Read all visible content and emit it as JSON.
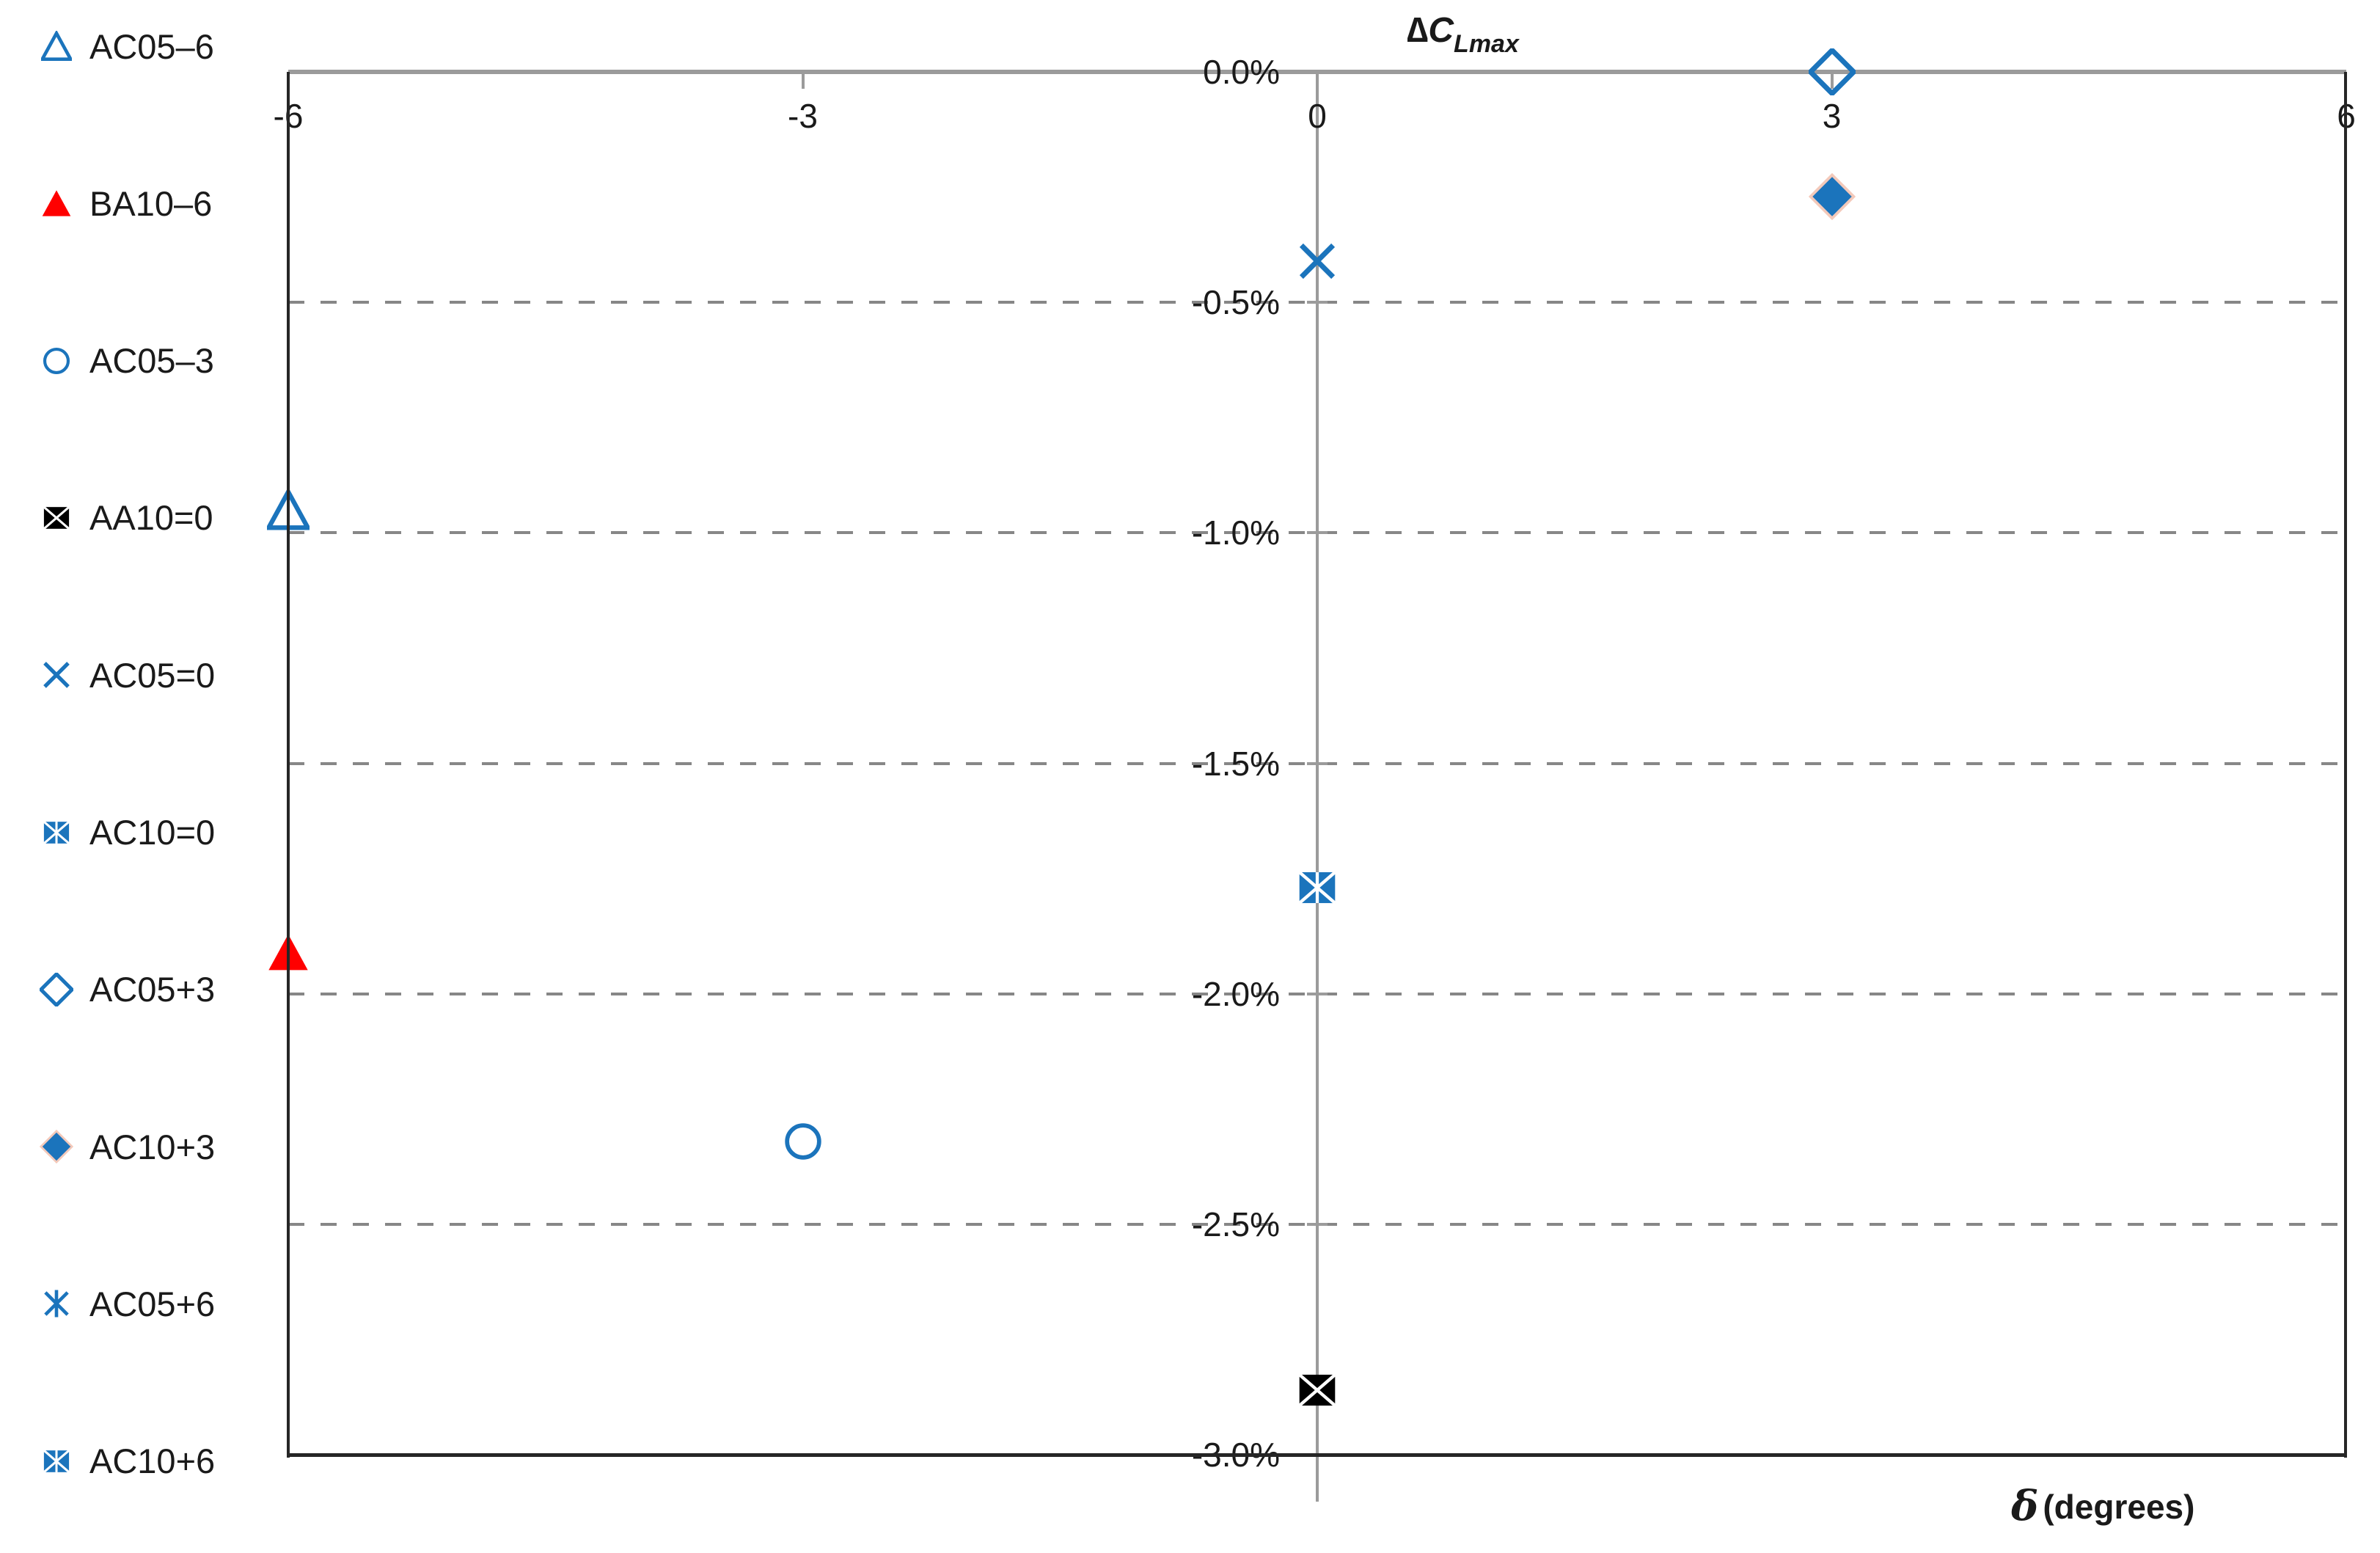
{
  "title_parts": {
    "delta": "∆",
    "symbol": "C",
    "subscript": "Lmax"
  },
  "xlabel_parts": {
    "symbol": "δ",
    "text": "(degrees)"
  },
  "legend": {
    "position": "left"
  },
  "colors": {
    "blue": "#1b74bc",
    "red": "#ff0000",
    "black": "#000000",
    "diamond_edge": "#f3c9ba",
    "axis_gray": "#9b9b9b",
    "gridline_gray": "#878787",
    "border_black": "#262626"
  },
  "chart_data": {
    "type": "scatter",
    "title": "ΔC_Lmax",
    "xlabel": "δ (degrees)",
    "ylabel": "ΔC_Lmax (%)",
    "xlim": [
      -6,
      6
    ],
    "ylim": [
      -3,
      0
    ],
    "grid": "horizontal-dashed",
    "legend_position": "left",
    "x_ticks": [
      {
        "label": "-6",
        "value": -6
      },
      {
        "label": "-3",
        "value": -3
      },
      {
        "label": "0",
        "value": 0
      },
      {
        "label": "3",
        "value": 3
      },
      {
        "label": "6",
        "value": 6
      }
    ],
    "y_ticks": [
      {
        "label": "0.0%",
        "value": 0
      },
      {
        "label": "-0.5%",
        "value": -0.5
      },
      {
        "label": "-1.0%",
        "value": -1.0
      },
      {
        "label": "-1.5%",
        "value": -1.5
      },
      {
        "label": "-2.0%",
        "value": -2.0
      },
      {
        "label": "-2.5%",
        "value": -2.5
      },
      {
        "label": "-3.0%",
        "value": -3.0
      }
    ],
    "series": [
      {
        "name": "AC05–6",
        "marker": "triangle-open",
        "color": "#1b74bc",
        "points": [
          {
            "x": -6,
            "y": -0.95
          }
        ]
      },
      {
        "name": "BA10–6",
        "marker": "triangle-filled",
        "color": "#ff0000",
        "points": [
          {
            "x": -6,
            "y": -1.91
          }
        ]
      },
      {
        "name": "AC05–3",
        "marker": "circle-open",
        "color": "#1b74bc",
        "points": [
          {
            "x": -3,
            "y": -2.32
          }
        ]
      },
      {
        "name": "AA10=0",
        "marker": "square-x",
        "color": "#000000",
        "points": [
          {
            "x": 0,
            "y": -2.86
          }
        ]
      },
      {
        "name": "AC05=0",
        "marker": "x",
        "color": "#1b74bc",
        "points": [
          {
            "x": 0,
            "y": -0.41
          }
        ]
      },
      {
        "name": "AC10=0",
        "marker": "square-asterisk",
        "color": "#1b74bc",
        "points": [
          {
            "x": 0,
            "y": -1.77
          }
        ]
      },
      {
        "name": "AC05+3",
        "marker": "diamond-open",
        "color": "#1b74bc",
        "points": [
          {
            "x": 3,
            "y": 0.0
          }
        ]
      },
      {
        "name": "AC10+3",
        "marker": "diamond-filled",
        "color": "#1b74bc",
        "edge": "#f3c9ba",
        "points": [
          {
            "x": 3,
            "y": -0.27
          }
        ]
      },
      {
        "name": "AC05+6",
        "marker": "asterisk",
        "color": "#1b74bc",
        "points": []
      },
      {
        "name": "AC10+6",
        "marker": "square-asterisk",
        "color": "#1b74bc",
        "points": []
      }
    ]
  }
}
